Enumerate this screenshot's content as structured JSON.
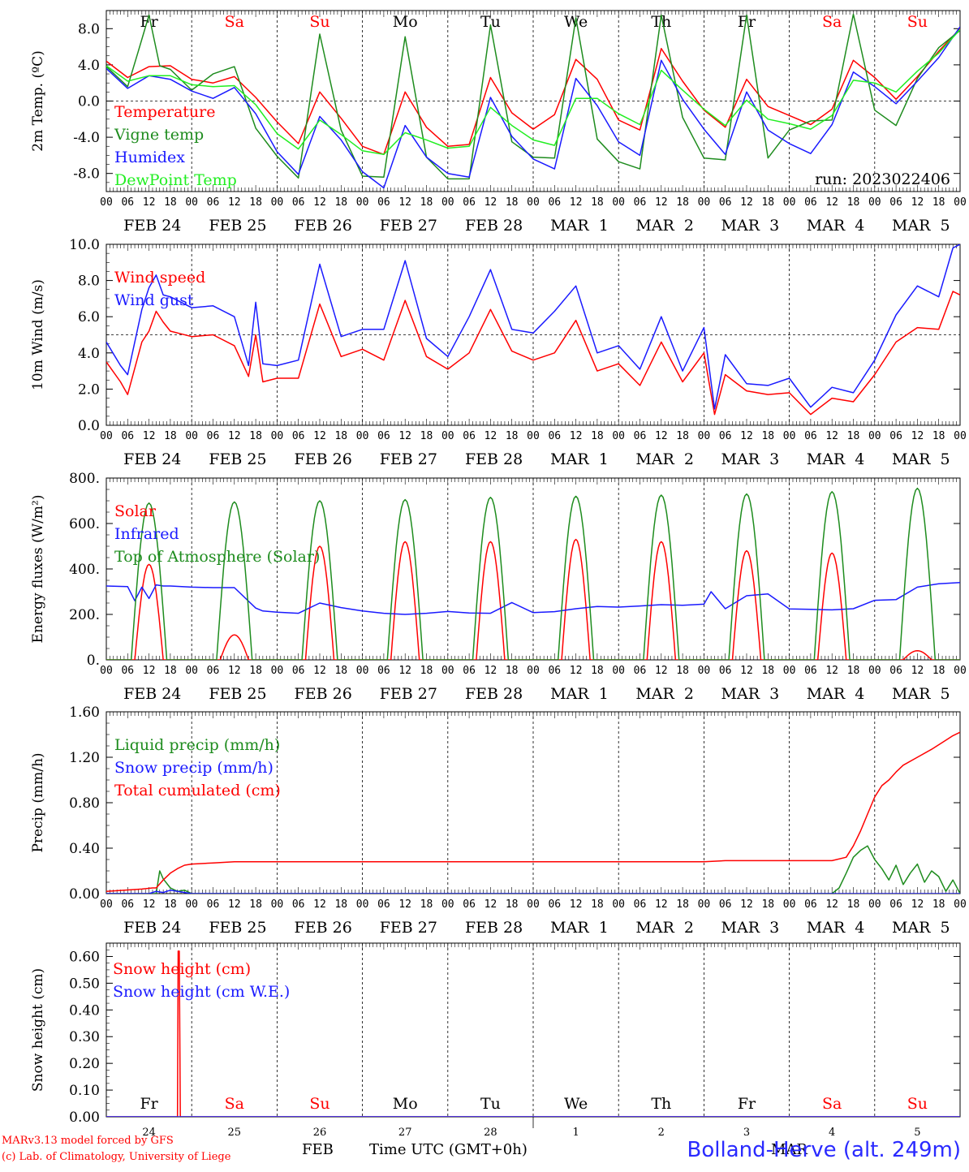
{
  "footer": {
    "credit_line1": "MARv3.13 model forced by GFS",
    "credit_line2": "(c) Lab. of Climatology, University of Liege",
    "time_axis_label": "Time UTC (GMT+0h)",
    "month_label_feb": "FEB",
    "month_label_mar": "MAR",
    "station": "Bolland-Herve (alt. 249m)"
  },
  "time_axis": {
    "days": 10,
    "hour_ticks": [
      "00",
      "06",
      "12",
      "18"
    ],
    "end_tick": "00",
    "date_labels": [
      "FEB 24",
      "FEB 25",
      "FEB 26",
      "FEB 27",
      "FEB 28",
      "MAR  1",
      "MAR  2",
      "MAR  3",
      "MAR  4",
      "MAR  5"
    ],
    "weekdays": [
      "Fr",
      "Sa",
      "Su",
      "Mo",
      "Tu",
      "We",
      "Th",
      "Fr",
      "Sa",
      "Su"
    ],
    "weekend": [
      false,
      true,
      true,
      false,
      false,
      false,
      false,
      false,
      true,
      true
    ],
    "day_numbers": [
      "24",
      "25",
      "26",
      "27",
      "28",
      "1",
      "2",
      "3",
      "4",
      "5"
    ]
  },
  "colors": {
    "red": "#ff0000",
    "darkgreen": "#1e8c1e",
    "blue": "#1a1aff",
    "lightgreen": "#22ee22",
    "black": "#000000"
  },
  "chart_data": [
    {
      "id": "temperature",
      "type": "line",
      "ylabel": "2m Temp. (ºC)",
      "ylim": [
        -10,
        10
      ],
      "yticks": [
        8,
        4,
        0,
        -4,
        -8
      ],
      "ytick_labels": [
        "8.0",
        "4.0",
        "0.0",
        "-4.0",
        "-8.0"
      ],
      "reference_line": 0,
      "run_label": "run: 2023022406",
      "x_unit": "hours since Feb 24 00 UTC",
      "series": [
        {
          "name": "Temperature",
          "color": "red",
          "x": [
            0,
            6,
            12,
            18,
            24,
            30,
            36,
            42,
            48,
            54,
            60,
            66,
            72,
            78,
            84,
            90,
            96,
            102,
            108,
            114,
            120,
            126,
            132,
            138,
            144,
            150,
            156,
            162,
            168,
            174,
            180,
            186,
            192,
            198,
            204,
            210,
            216,
            222,
            228,
            234,
            240
          ],
          "y": [
            4.4,
            2.6,
            3.8,
            3.9,
            2.4,
            2.0,
            2.7,
            0.4,
            -2.3,
            -4.7,
            1.0,
            -1.9,
            -5.0,
            -5.9,
            1.0,
            -2.9,
            -5.0,
            -4.8,
            2.6,
            -1.3,
            -3.1,
            -1.5,
            4.6,
            2.4,
            -2.1,
            -3.2,
            5.8,
            2.2,
            -1.0,
            -2.9,
            2.4,
            -0.6,
            -1.6,
            -2.6,
            -0.9,
            4.5,
            2.6,
            0.2,
            2.7,
            5.5,
            8.0
          ]
        },
        {
          "name": "Vigne temp",
          "color": "darkgreen",
          "x": [
            0,
            6,
            9,
            12,
            15,
            18,
            24,
            30,
            36,
            42,
            48,
            54,
            60,
            66,
            72,
            78,
            84,
            90,
            96,
            102,
            108,
            114,
            120,
            126,
            132,
            138,
            144,
            150,
            156,
            162,
            168,
            174,
            180,
            186,
            192,
            198,
            204,
            210,
            216,
            222,
            228,
            234,
            240
          ],
          "y": [
            3.8,
            1.6,
            5.5,
            9.5,
            3.9,
            3.5,
            1.2,
            3.0,
            3.8,
            -3.0,
            -6.1,
            -8.5,
            7.4,
            -3.2,
            -8.3,
            -8.4,
            7.1,
            -6.2,
            -8.6,
            -8.6,
            8.4,
            -4.5,
            -6.2,
            -6.3,
            9.2,
            -4.2,
            -6.7,
            -7.5,
            9.5,
            -1.8,
            -6.3,
            -6.5,
            9.5,
            -6.3,
            -3.2,
            -2.2,
            -2.1,
            9.6,
            -1.0,
            -2.7,
            2.5,
            5.9,
            7.8
          ]
        },
        {
          "name": "Humidex",
          "color": "blue",
          "x": [
            0,
            6,
            12,
            18,
            24,
            30,
            36,
            42,
            48,
            54,
            60,
            66,
            72,
            78,
            84,
            90,
            96,
            102,
            108,
            114,
            120,
            126,
            132,
            138,
            144,
            150,
            156,
            162,
            168,
            174,
            180,
            186,
            192,
            198,
            204,
            210,
            216,
            222,
            228,
            234,
            240
          ],
          "y": [
            3.6,
            1.4,
            2.8,
            2.4,
            1.1,
            0.3,
            1.5,
            -1.4,
            -5.6,
            -8.1,
            -1.7,
            -4.3,
            -7.8,
            -9.6,
            -2.7,
            -6.2,
            -8.0,
            -8.4,
            0.4,
            -3.9,
            -6.4,
            -7.5,
            2.5,
            -0.5,
            -4.5,
            -6.0,
            4.5,
            0.2,
            -3.1,
            -5.9,
            1.0,
            -3.2,
            -4.7,
            -5.8,
            -2.6,
            3.2,
            1.6,
            -0.3,
            2.2,
            4.8,
            8.2
          ]
        },
        {
          "name": "DewPoint Temp",
          "color": "lightgreen",
          "x": [
            0,
            6,
            12,
            18,
            24,
            30,
            36,
            42,
            48,
            54,
            60,
            66,
            72,
            78,
            84,
            90,
            96,
            102,
            108,
            114,
            120,
            126,
            132,
            138,
            144,
            150,
            156,
            162,
            168,
            174,
            180,
            186,
            192,
            198,
            204,
            210,
            216,
            222,
            228,
            234,
            240
          ],
          "y": [
            3.9,
            2.2,
            2.8,
            2.8,
            1.8,
            1.6,
            1.7,
            -0.4,
            -3.6,
            -5.3,
            -2.1,
            -3.7,
            -5.5,
            -5.9,
            -3.5,
            -4.3,
            -5.2,
            -5.0,
            -0.7,
            -2.7,
            -4.3,
            -4.9,
            0.3,
            0.3,
            -1.4,
            -2.6,
            3.4,
            1.2,
            -0.9,
            -2.7,
            0.1,
            -2.0,
            -2.5,
            -3.1,
            -1.6,
            2.3,
            2.0,
            1.0,
            3.3,
            5.3,
            7.9
          ]
        }
      ]
    },
    {
      "id": "wind",
      "type": "line",
      "ylabel": "10m Wind (m/s)",
      "ylim": [
        0,
        10
      ],
      "yticks": [
        10,
        8,
        6,
        4,
        2,
        0
      ],
      "ytick_labels": [
        "10.0",
        "8.0",
        "6.0",
        "4.0",
        "2.0",
        "0.0"
      ],
      "reference_line": 5,
      "x_unit": "hours since Feb 24 00 UTC",
      "series": [
        {
          "name": "Wind speed",
          "color": "red",
          "x": [
            0,
            4,
            6,
            10,
            12,
            14,
            16,
            18,
            24,
            30,
            36,
            40,
            42,
            44,
            48,
            54,
            60,
            66,
            72,
            78,
            84,
            90,
            96,
            102,
            108,
            114,
            120,
            126,
            132,
            138,
            144,
            150,
            156,
            162,
            168,
            171,
            174,
            180,
            186,
            192,
            198,
            204,
            210,
            216,
            222,
            228,
            234,
            238,
            240
          ],
          "y": [
            3.5,
            2.4,
            1.7,
            4.6,
            5.2,
            6.3,
            5.7,
            5.2,
            4.9,
            5.0,
            4.4,
            2.7,
            5.0,
            2.4,
            2.6,
            2.6,
            6.7,
            3.8,
            4.2,
            3.6,
            6.9,
            3.8,
            3.1,
            4.0,
            6.4,
            4.1,
            3.6,
            4.0,
            5.8,
            3.0,
            3.4,
            2.2,
            4.6,
            2.4,
            4.0,
            0.6,
            2.8,
            1.9,
            1.7,
            1.8,
            0.6,
            1.5,
            1.3,
            2.8,
            4.6,
            5.4,
            5.3,
            7.4,
            7.2
          ]
        },
        {
          "name": "Wind gust",
          "color": "blue",
          "x": [
            0,
            4,
            6,
            10,
            12,
            14,
            16,
            18,
            24,
            30,
            36,
            40,
            42,
            44,
            48,
            54,
            60,
            66,
            72,
            78,
            84,
            90,
            96,
            102,
            108,
            114,
            120,
            126,
            132,
            138,
            144,
            150,
            156,
            162,
            168,
            171,
            174,
            180,
            186,
            192,
            198,
            204,
            210,
            216,
            222,
            228,
            234,
            238,
            240
          ],
          "y": [
            4.6,
            3.3,
            2.8,
            6.4,
            7.6,
            8.3,
            7.2,
            7.1,
            6.5,
            6.6,
            6.0,
            3.3,
            6.8,
            3.4,
            3.3,
            3.6,
            8.9,
            4.9,
            5.3,
            5.3,
            9.1,
            4.8,
            3.8,
            6.0,
            8.6,
            5.3,
            5.1,
            6.3,
            7.7,
            4.0,
            4.4,
            3.1,
            6.0,
            3.0,
            5.4,
            0.9,
            3.9,
            2.3,
            2.2,
            2.6,
            1.0,
            2.1,
            1.8,
            3.6,
            6.1,
            7.7,
            7.1,
            9.8,
            10.0
          ]
        }
      ]
    },
    {
      "id": "energy",
      "type": "line",
      "ylabel": "Energy fluxes (W/m²)",
      "ylim": [
        0,
        800
      ],
      "yticks": [
        800,
        600,
        400,
        200,
        0
      ],
      "ytick_labels": [
        "800.",
        "600.",
        "400.",
        "200.",
        "0."
      ],
      "x_unit": "hours since Feb 24 00 UTC",
      "toa_daily_peak": [
        690,
        695,
        700,
        705,
        715,
        720,
        725,
        730,
        740,
        755
      ],
      "solar_daily_peak": [
        420,
        110,
        500,
        520,
        520,
        530,
        520,
        480,
        470,
        40
      ],
      "series": [
        {
          "name": "Solar",
          "color": "red"
        },
        {
          "name": "Infrared",
          "color": "blue",
          "x": [
            0,
            6,
            8,
            10,
            12,
            14,
            16,
            18,
            24,
            30,
            36,
            42,
            44,
            48,
            54,
            60,
            66,
            72,
            78,
            84,
            90,
            96,
            102,
            108,
            114,
            120,
            126,
            132,
            138,
            144,
            150,
            156,
            162,
            168,
            170,
            174,
            180,
            186,
            192,
            198,
            204,
            210,
            216,
            222,
            228,
            234,
            240
          ],
          "y": [
            325,
            322,
            260,
            320,
            270,
            330,
            325,
            325,
            320,
            318,
            318,
            228,
            215,
            210,
            205,
            250,
            230,
            215,
            205,
            200,
            205,
            213,
            206,
            205,
            252,
            208,
            212,
            225,
            235,
            232,
            237,
            243,
            240,
            245,
            300,
            225,
            282,
            290,
            224,
            222,
            220,
            225,
            262,
            265,
            320,
            335,
            340
          ]
        },
        {
          "name": "Top of Atmosphere (Solar)",
          "color": "darkgreen"
        }
      ]
    },
    {
      "id": "precip",
      "type": "line",
      "ylabel": "Precip (mm/h)",
      "ylim": [
        0,
        1.6
      ],
      "yticks": [
        1.6,
        1.2,
        0.8,
        0.4,
        0
      ],
      "ytick_labels": [
        "1.60",
        "1.20",
        "0.80",
        "0.40",
        "0.00"
      ],
      "x_unit": "hours since Feb 24 00 UTC",
      "series": [
        {
          "name": "Liquid precip (mm/h)",
          "color": "darkgreen",
          "x": [
            0,
            12,
            14,
            15,
            16,
            18,
            20,
            22,
            24,
            200,
            204,
            206,
            208,
            210,
            212,
            214,
            216,
            218,
            220,
            222,
            224,
            226,
            228,
            230,
            232,
            234,
            236,
            238,
            240
          ],
          "y": [
            0,
            0,
            0,
            0.2,
            0.13,
            0.05,
            0.02,
            0.03,
            0,
            0,
            0,
            0.05,
            0.18,
            0.32,
            0.38,
            0.42,
            0.3,
            0.22,
            0.12,
            0.25,
            0.08,
            0.18,
            0.26,
            0.1,
            0.2,
            0.15,
            0.02,
            0.12,
            0
          ]
        },
        {
          "name": "Snow precip (mm/h)",
          "color": "blue",
          "x": [
            0,
            12,
            14,
            16,
            18,
            20,
            22,
            24,
            240
          ],
          "y": [
            0,
            0,
            0.02,
            0.01,
            0.03,
            0.02,
            0.01,
            0,
            0
          ]
        },
        {
          "name": "Total cumulated (cm)",
          "color": "red",
          "x": [
            0,
            10,
            13,
            14,
            16,
            18,
            20,
            22,
            24,
            30,
            36,
            48,
            168,
            174,
            180,
            192,
            204,
            208,
            210,
            212,
            214,
            216,
            218,
            220,
            222,
            224,
            228,
            232,
            236,
            238,
            240
          ],
          "y": [
            0.02,
            0.04,
            0.05,
            0.05,
            0.12,
            0.18,
            0.22,
            0.25,
            0.26,
            0.27,
            0.28,
            0.28,
            0.28,
            0.29,
            0.29,
            0.29,
            0.29,
            0.32,
            0.42,
            0.55,
            0.7,
            0.85,
            0.95,
            1.0,
            1.07,
            1.13,
            1.2,
            1.27,
            1.35,
            1.39,
            1.42
          ]
        }
      ]
    },
    {
      "id": "snow",
      "type": "line",
      "ylabel": "Snow height (cm)",
      "ylim": [
        0,
        0.65
      ],
      "yticks": [
        0.6,
        0.5,
        0.4,
        0.3,
        0.2,
        0.1,
        0
      ],
      "ytick_labels": [
        "0.60",
        "0.50",
        "0.40",
        "0.30",
        "0.20",
        "0.10",
        "0.00"
      ],
      "x_unit": "hours since Feb 24 00 UTC",
      "series": [
        {
          "name": "Snow height (cm)",
          "color": "red",
          "x": [
            0,
            20,
            20.2,
            20.5,
            20.8,
            240
          ],
          "y": [
            0,
            0,
            0.62,
            0.62,
            0,
            0
          ]
        },
        {
          "name": "Snow height (cm W.E.)",
          "color": "blue",
          "x": [
            0,
            240
          ],
          "y": [
            0,
            0
          ]
        }
      ]
    }
  ]
}
